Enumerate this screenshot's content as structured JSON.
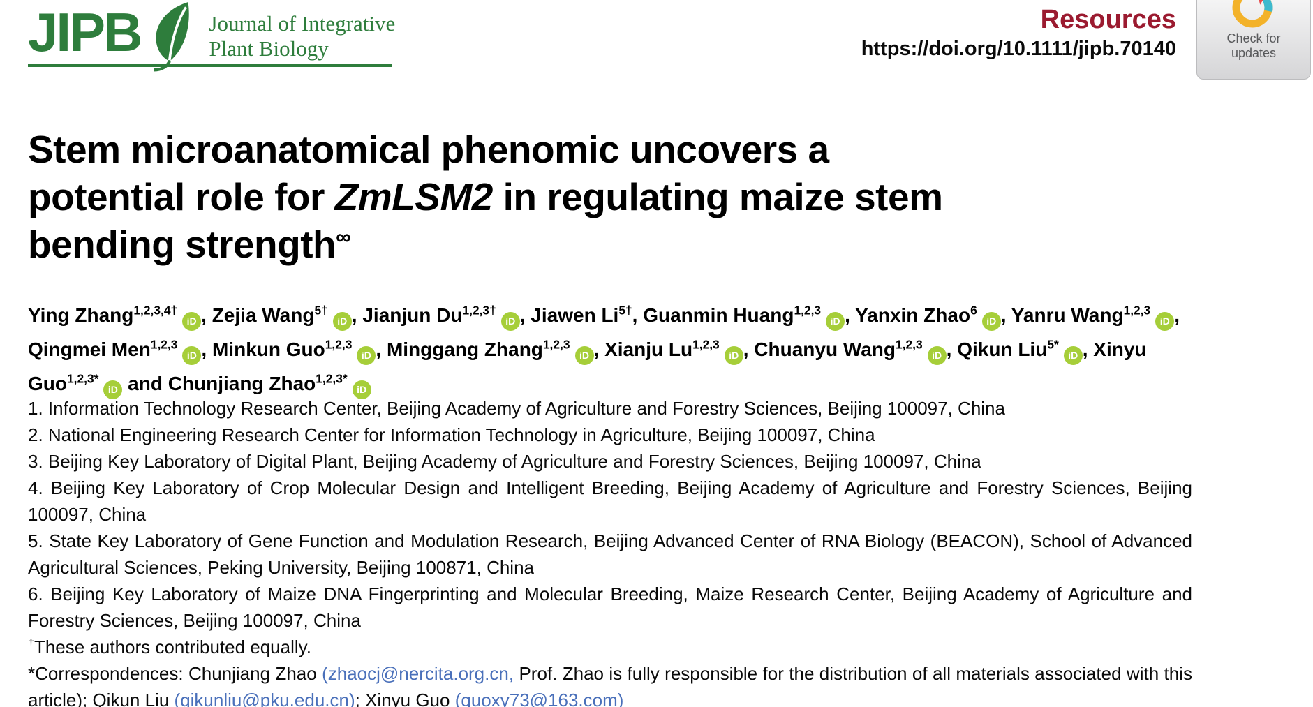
{
  "header": {
    "logo_acronym": "JIPB",
    "journal_name_line1": "Journal of Integrative",
    "journal_name_line2": "Plant Biology",
    "article_type": "Resources",
    "doi": "https://doi.org/10.1111/jipb.70140",
    "crossmark": {
      "line1": "Check for",
      "line2": "updates"
    }
  },
  "title": {
    "line1": "Stem microanatomical phenomic uncovers a",
    "line2_pre": "potential role for ",
    "line2_italic": "ZmLSM2",
    "line2_post": " in regulating maize stem",
    "line3": "bending strength",
    "line3_mark": "∞"
  },
  "orcid_label": "iD",
  "authors": [
    {
      "name": "Ying Zhang",
      "sup": "1,2,3,4†",
      "orcid": true,
      "sep": ", "
    },
    {
      "name": "Zejia Wang",
      "sup": "5†",
      "orcid": true,
      "sep": ", "
    },
    {
      "name": "Jianjun Du",
      "sup": "1,2,3†",
      "orcid": true,
      "sep": ", "
    },
    {
      "name": "Jiawen Li",
      "sup": "5†",
      "orcid": false,
      "sep": ", "
    },
    {
      "name": "Guanmin Huang",
      "sup": "1,2,3",
      "orcid": true,
      "sep": ", "
    },
    {
      "name": "Yanxin Zhao",
      "sup": "6",
      "orcid": true,
      "sep": ", "
    },
    {
      "name": "Yanru Wang",
      "sup": "1,2,3",
      "orcid": true,
      "sep": ", "
    },
    {
      "name": "Qingmei Men",
      "sup": "1,2,3",
      "orcid": true,
      "sep": ", "
    },
    {
      "name": "Minkun Guo",
      "sup": "1,2,3",
      "orcid": true,
      "sep": ", "
    },
    {
      "name": "Minggang Zhang",
      "sup": "1,2,3",
      "orcid": true,
      "sep": ", "
    },
    {
      "name": "Xianju Lu",
      "sup": "1,2,3",
      "orcid": true,
      "sep": ", "
    },
    {
      "name": "Chuanyu Wang",
      "sup": "1,2,3",
      "orcid": true,
      "sep": ", "
    },
    {
      "name": "Qikun Liu",
      "sup": "5*",
      "orcid": true,
      "sep": ", "
    },
    {
      "name": "Xinyu Guo",
      "sup": "1,2,3*",
      "orcid": true,
      "sep": " and "
    },
    {
      "name": "Chunjiang Zhao",
      "sup": "1,2,3*",
      "orcid": true,
      "sep": ""
    }
  ],
  "affiliations": [
    "1. Information Technology Research Center, Beijing Academy of Agriculture and Forestry Sciences, Beijing 100097, China",
    "2. National Engineering Research Center for Information Technology in Agriculture, Beijing 100097, China",
    "3. Beijing Key Laboratory of Digital Plant, Beijing Academy of Agriculture and Forestry Sciences, Beijing 100097, China",
    "4. Beijing Key Laboratory of Crop Molecular Design and Intelligent Breeding, Beijing Academy of Agriculture and Forestry Sciences, Beijing 100097, China",
    "5. State Key Laboratory of Gene Function and Modulation Research, Beijing Advanced Center of RNA Biology (BEACON), School of Advanced Agricultural Sciences, Peking University, Beijing 100871, China",
    "6. Beijing Key Laboratory of Maize DNA Fingerprinting and Molecular Breeding, Maize Research Center, Beijing Academy of Agriculture and Forestry Sciences, Beijing 100097, China"
  ],
  "equal_note": {
    "dagger": "†",
    "text": "These authors contributed equally."
  },
  "correspondence": {
    "segments": [
      {
        "type": "plain",
        "text": "*Correspondences: Chunjiang Zhao "
      },
      {
        "type": "link",
        "text": "(zhaocj@nercita.org.cn,"
      },
      {
        "type": "plain",
        "text": " Prof. Zhao is fully responsible for the distribution of all materials associated with this article); Qikun Liu "
      },
      {
        "type": "link",
        "text": "(qikunliu@pku.edu.cn)"
      },
      {
        "type": "plain",
        "text": "; Xinyu Guo "
      },
      {
        "type": "link",
        "text": "(guoxy73@163.com)"
      }
    ]
  },
  "colors": {
    "journal_green": "#2e7d3c",
    "resources_maroon": "#9b1b30",
    "orcid_green": "#a6ce39",
    "email_link_blue": "#4a70ba",
    "crossmark_yellow": "#f3b229",
    "crossmark_red": "#e8494a",
    "crossmark_cyan": "#3db9ce"
  }
}
